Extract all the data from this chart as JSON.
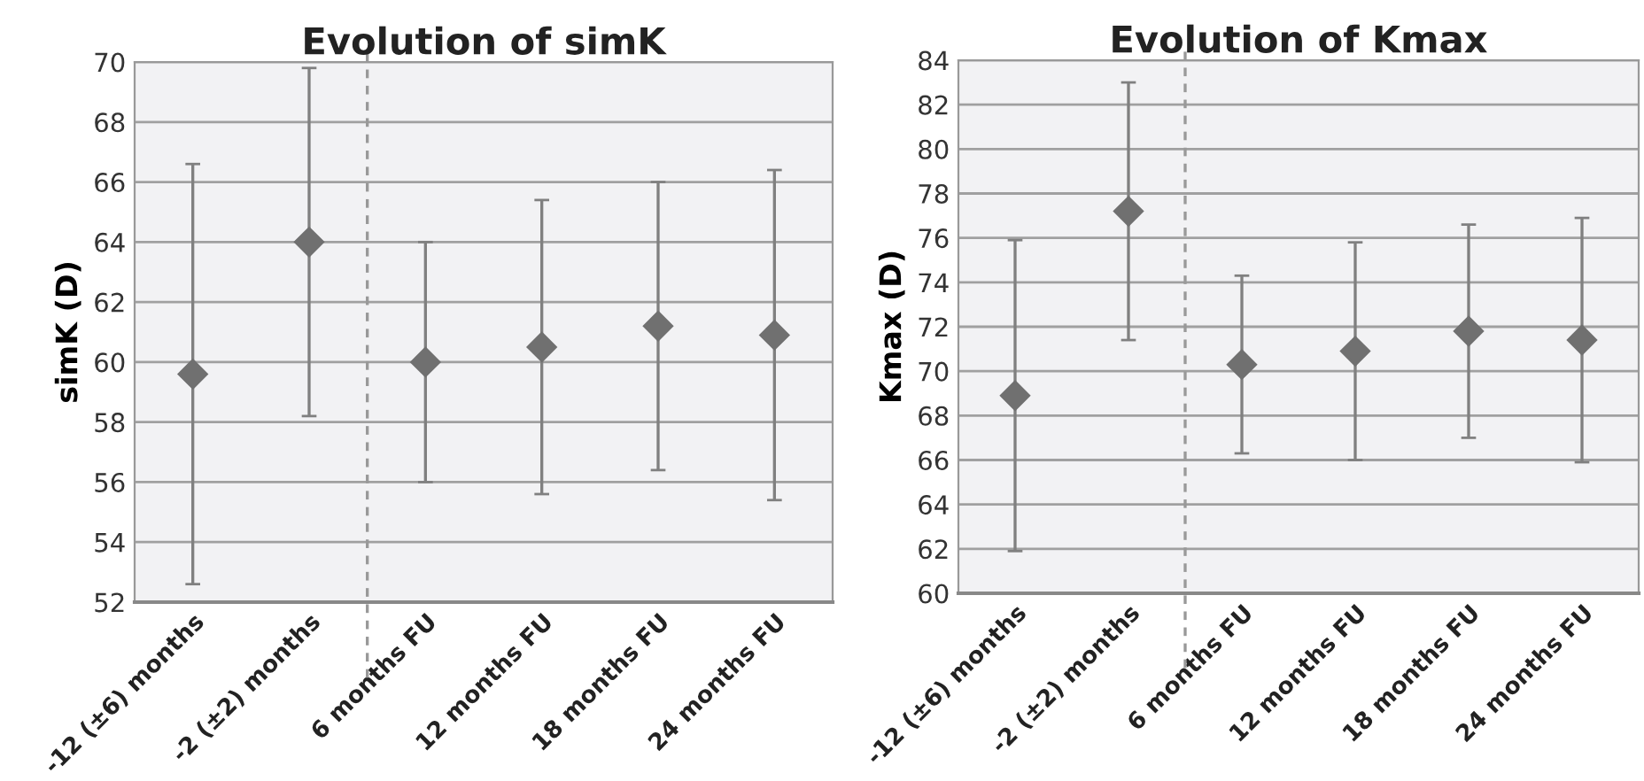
{
  "chart_data": [
    {
      "type": "scatter",
      "title": "Evolution of simK",
      "ylabel": "simK (D)",
      "categories": [
        "-12 (±6) months",
        "-2 (±2) months",
        "6 months FU",
        "12 months FU",
        "18 months FU",
        "24 months FU"
      ],
      "values": [
        59.6,
        64.0,
        60.0,
        60.5,
        61.2,
        60.9
      ],
      "errors": [
        7.0,
        5.8,
        4.0,
        4.9,
        4.8,
        5.5
      ],
      "color": "#707070",
      "marker": "diamond",
      "grid": "y",
      "ylim": [
        52,
        70
      ],
      "yticks": [
        52,
        54,
        56,
        58,
        60,
        62,
        64,
        66,
        68,
        70
      ]
    },
    {
      "type": "scatter",
      "title": "Evolution of Kmax",
      "ylabel": "Kmax (D)",
      "categories": [
        "-12 (±6) months",
        "-2 (±2) months",
        "6 months FU",
        "12 months FU",
        "18 months FU",
        "24 months FU"
      ],
      "values": [
        68.9,
        77.2,
        70.3,
        70.9,
        71.8,
        71.4
      ],
      "errors": [
        7.0,
        5.8,
        4.0,
        4.9,
        4.8,
        5.5
      ],
      "color": "#707070",
      "marker": "diamond",
      "grid": "y",
      "ylim": [
        60,
        84
      ],
      "yticks": [
        60,
        62,
        64,
        66,
        68,
        70,
        72,
        74,
        76,
        78,
        80,
        82,
        84
      ]
    }
  ]
}
